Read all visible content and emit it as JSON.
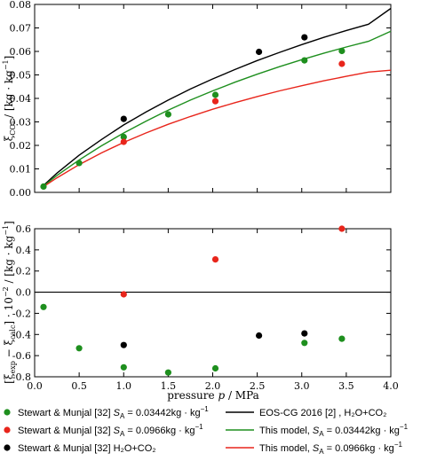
{
  "chart_data": [
    {
      "type": "scatter+line",
      "xlabel": "",
      "ylabel": "ξ_CO2 / [kg·kg⁻¹]",
      "xlim": [
        0,
        4.0
      ],
      "ylim": [
        0,
        0.08
      ],
      "xticks": [
        0.0,
        0.5,
        1.0,
        1.5,
        2.0,
        2.5,
        3.0,
        3.5,
        4.0
      ],
      "yticks": [
        0.0,
        0.01,
        0.02,
        0.03,
        0.04,
        0.05,
        0.06,
        0.07,
        0.08
      ],
      "show_xtick_labels": false,
      "scatter_series": [
        {
          "name": "Stewart & Munjal [32] S_A = 0.03442kg·kg⁻¹",
          "color": "#1e8f1e",
          "points": [
            [
              0.1,
              0.0025
            ],
            [
              0.5,
              0.0125
            ],
            [
              1.0,
              0.0236
            ],
            [
              1.5,
              0.0332
            ],
            [
              2.03,
              0.0415
            ],
            [
              3.03,
              0.0562
            ],
            [
              3.45,
              0.0602
            ]
          ]
        },
        {
          "name": "Stewart & Munjal [32] S_A = 0.0966kg·kg⁻¹",
          "color": "#e8251b",
          "points": [
            [
              1.0,
              0.0215
            ],
            [
              2.03,
              0.0388
            ],
            [
              3.45,
              0.0547
            ]
          ]
        },
        {
          "name": "Stewart & Munjal [32] H₂O+CO₂",
          "color": "#000000",
          "points": [
            [
              1.0,
              0.0313
            ],
            [
              2.52,
              0.0598
            ],
            [
              3.03,
              0.066
            ]
          ]
        }
      ],
      "line_series": [
        {
          "name": "EOS-CG 2016 [2] , H₂O+CO₂",
          "color": "#000000",
          "points": [
            [
              0.1,
              0.003
            ],
            [
              0.25,
              0.0082
            ],
            [
              0.5,
              0.0158
            ],
            [
              0.75,
              0.0225
            ],
            [
              1.0,
              0.0287
            ],
            [
              1.25,
              0.0342
            ],
            [
              1.5,
              0.0393
            ],
            [
              1.75,
              0.044
            ],
            [
              2.0,
              0.0483
            ],
            [
              2.25,
              0.0523
            ],
            [
              2.5,
              0.0561
            ],
            [
              2.75,
              0.0596
            ],
            [
              3.0,
              0.0629
            ],
            [
              3.25,
              0.066
            ],
            [
              3.5,
              0.0689
            ],
            [
              3.75,
              0.0716
            ],
            [
              4.0,
              0.0783
            ]
          ]
        },
        {
          "name": "This model, S_A = 0.03442kg·kg⁻¹",
          "color": "#1e8f1e",
          "points": [
            [
              0.1,
              0.0027
            ],
            [
              0.25,
              0.0072
            ],
            [
              0.5,
              0.0138
            ],
            [
              0.75,
              0.0198
            ],
            [
              1.0,
              0.0253
            ],
            [
              1.25,
              0.0303
            ],
            [
              1.5,
              0.035
            ],
            [
              1.75,
              0.0393
            ],
            [
              2.0,
              0.0432
            ],
            [
              2.25,
              0.0469
            ],
            [
              2.5,
              0.0503
            ],
            [
              2.75,
              0.0535
            ],
            [
              3.0,
              0.0565
            ],
            [
              3.25,
              0.0593
            ],
            [
              3.5,
              0.0619
            ],
            [
              3.75,
              0.0643
            ],
            [
              4.0,
              0.0686
            ]
          ]
        },
        {
          "name": "This model, S_A = 0.0966kg·kg⁻¹",
          "color": "#e8251b",
          "points": [
            [
              0.1,
              0.0024
            ],
            [
              0.25,
              0.0062
            ],
            [
              0.5,
              0.0118
            ],
            [
              0.75,
              0.0168
            ],
            [
              1.0,
              0.0213
            ],
            [
              1.25,
              0.0253
            ],
            [
              1.5,
              0.029
            ],
            [
              1.75,
              0.0323
            ],
            [
              2.0,
              0.0354
            ],
            [
              2.25,
              0.0382
            ],
            [
              2.5,
              0.0408
            ],
            [
              2.75,
              0.0432
            ],
            [
              3.0,
              0.0454
            ],
            [
              3.25,
              0.0475
            ],
            [
              3.5,
              0.0494
            ],
            [
              3.75,
              0.0512
            ],
            [
              4.0,
              0.052
            ]
          ]
        }
      ]
    },
    {
      "type": "scatter",
      "xlabel": "pressure p / MPa",
      "ylabel": "[ξ_exp − ξ_calc] · 10⁻² / [kg·kg⁻¹]",
      "xlim": [
        0,
        4.0
      ],
      "ylim": [
        -0.8,
        0.6
      ],
      "xticks": [
        0.0,
        0.5,
        1.0,
        1.5,
        2.0,
        2.5,
        3.0,
        3.5,
        4.0
      ],
      "yticks": [
        -0.8,
        -0.6,
        -0.4,
        -0.2,
        0.0,
        0.2,
        0.4,
        0.6
      ],
      "zero_line": true,
      "scatter_series": [
        {
          "name": "Stewart & Munjal [32] S_A = 0.03442kg·kg⁻¹",
          "color": "#1e8f1e",
          "points": [
            [
              0.1,
              -0.14
            ],
            [
              0.5,
              -0.53
            ],
            [
              1.0,
              -0.71
            ],
            [
              1.5,
              -0.76
            ],
            [
              2.03,
              -0.72
            ],
            [
              3.03,
              -0.48
            ],
            [
              3.45,
              -0.44
            ]
          ]
        },
        {
          "name": "Stewart & Munjal [32] S_A = 0.0966kg·kg⁻¹",
          "color": "#e8251b",
          "points": [
            [
              1.0,
              -0.02
            ],
            [
              2.03,
              0.31
            ],
            [
              3.45,
              0.6
            ]
          ]
        },
        {
          "name": "Stewart & Munjal [32] H₂O+CO₂",
          "color": "#000000",
          "points": [
            [
              1.0,
              -0.5
            ],
            [
              2.52,
              -0.41
            ],
            [
              3.03,
              -0.39
            ]
          ]
        }
      ]
    }
  ],
  "legend": {
    "placement": "bottom",
    "entries": [
      {
        "kind": "marker",
        "color": "#1e8f1e",
        "prefix": "Stewart & Munjal [32] ",
        "symbol": "S",
        "sub": "A",
        "suffix": " = 0.03442kg · kg",
        "sup": "−1"
      },
      {
        "kind": "marker",
        "color": "#e8251b",
        "prefix": "Stewart & Munjal [32] ",
        "symbol": "S",
        "sub": "A",
        "suffix": " = 0.0966kg · kg",
        "sup": "−1"
      },
      {
        "kind": "marker",
        "color": "#000000",
        "prefix": "Stewart & Munjal [32] ",
        "symbol": "",
        "sub": "",
        "suffix": "H₂O+CO₂",
        "sup": ""
      },
      {
        "kind": "line",
        "color": "#000000",
        "prefix": "EOS-CG 2016 [2] , H₂O+CO₂",
        "symbol": "",
        "sub": "",
        "suffix": "",
        "sup": ""
      },
      {
        "kind": "line",
        "color": "#1e8f1e",
        "prefix": "This model, ",
        "symbol": "S",
        "sub": "A",
        "suffix": " = 0.03442kg · kg",
        "sup": "−1"
      },
      {
        "kind": "line",
        "color": "#e8251b",
        "prefix": "This model, ",
        "symbol": "S",
        "sub": "A",
        "suffix": " = 0.0966kg · kg",
        "sup": "−1"
      }
    ]
  },
  "labels": {
    "top_ylabel_main": "ξ",
    "top_ylabel_sub": "CO₂",
    "top_ylabel_rest": " / [kg · kg",
    "top_ylabel_sup": "−1",
    "top_ylabel_end": "]",
    "bottom_ylabel_a": "[ξ",
    "bottom_ylabel_sub1": "exp",
    "bottom_ylabel_b": " − ξ",
    "bottom_ylabel_sub2": "calc",
    "bottom_ylabel_c": "] · 10",
    "bottom_ylabel_sup1": "−2",
    "bottom_ylabel_d": " / [kg · kg",
    "bottom_ylabel_sup2": "−1",
    "bottom_ylabel_e": "]",
    "xlabel_a": "pressure ",
    "xlabel_p": "p",
    "xlabel_b": " / MPa"
  }
}
